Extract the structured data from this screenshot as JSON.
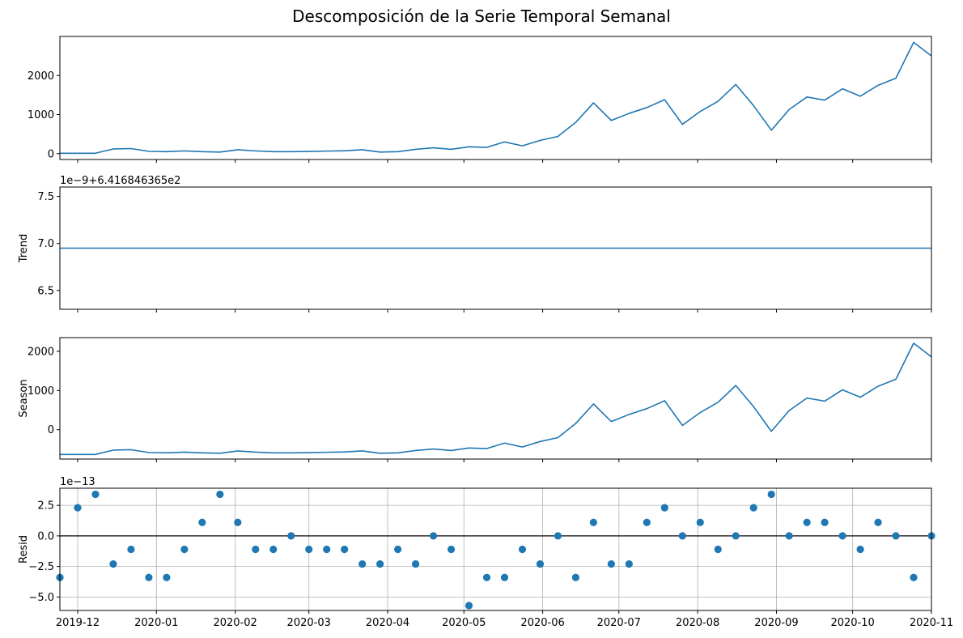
{
  "title": "Descomposición de la Serie Temporal Semanal",
  "colors": {
    "line": "#1f77b4",
    "marker": "#1f77b4",
    "axis": "#000000",
    "grid": "#b0b0b0"
  },
  "chart_data": [
    {
      "type": "line",
      "panel": "observed",
      "ylabel": "",
      "offset_text": "",
      "ylim": [
        -150,
        3000
      ],
      "yticks": [
        0,
        1000,
        2000
      ],
      "ytick_labels": [
        "0",
        "1000",
        "2000"
      ],
      "grid": false,
      "x": [
        "2019-11-24",
        "2019-12-01",
        "2019-12-08",
        "2019-12-15",
        "2019-12-22",
        "2019-12-29",
        "2020-01-05",
        "2020-01-12",
        "2020-01-19",
        "2020-01-26",
        "2020-02-02",
        "2020-02-09",
        "2020-02-16",
        "2020-02-23",
        "2020-03-01",
        "2020-03-08",
        "2020-03-15",
        "2020-03-22",
        "2020-03-29",
        "2020-04-05",
        "2020-04-12",
        "2020-04-19",
        "2020-04-26",
        "2020-05-03",
        "2020-05-10",
        "2020-05-17",
        "2020-05-24",
        "2020-05-31",
        "2020-06-07",
        "2020-06-14",
        "2020-06-21",
        "2020-06-28",
        "2020-07-05",
        "2020-07-12",
        "2020-07-19",
        "2020-07-26",
        "2020-08-02",
        "2020-08-09",
        "2020-08-16",
        "2020-08-23",
        "2020-08-30",
        "2020-09-06",
        "2020-09-13",
        "2020-09-20",
        "2020-09-27",
        "2020-10-04",
        "2020-10-11",
        "2020-10-18",
        "2020-10-25",
        "2020-11-01"
      ],
      "values": [
        10,
        10,
        10,
        120,
        130,
        60,
        50,
        70,
        50,
        40,
        100,
        70,
        50,
        50,
        55,
        65,
        75,
        100,
        40,
        50,
        110,
        150,
        110,
        175,
        160,
        300,
        200,
        340,
        440,
        800,
        1300,
        850,
        1030,
        1180,
        1380,
        750,
        1080,
        1340,
        1770,
        1230,
        600,
        1130,
        1450,
        1370,
        1660,
        1470,
        1750,
        1930,
        2850,
        2500
      ]
    },
    {
      "type": "line",
      "panel": "trend",
      "ylabel": "Trend",
      "offset_text": "1e−9+6.416846365e2",
      "ylim": [
        6.3,
        7.6
      ],
      "yticks": [
        6.5,
        7.0,
        7.5
      ],
      "ytick_labels": [
        "6.5",
        "7.0",
        "7.5"
      ],
      "grid": false,
      "values_note": "",
      "values": [
        6.95,
        6.95,
        6.95,
        6.95,
        6.95,
        6.95,
        6.95,
        6.95,
        6.95,
        6.95,
        6.95,
        6.95,
        6.95,
        6.95,
        6.95,
        6.95,
        6.95,
        6.95,
        6.95,
        6.95,
        6.95,
        6.95,
        6.95,
        6.95,
        6.95,
        6.95,
        6.95,
        6.95,
        6.95,
        6.95,
        6.95,
        6.95,
        6.95,
        6.95,
        6.95,
        6.95,
        6.95,
        6.95,
        6.95,
        6.95,
        6.95,
        6.95,
        6.95,
        6.95,
        6.95,
        6.95,
        6.95,
        6.95,
        6.95,
        6.95
      ]
    },
    {
      "type": "line",
      "panel": "season",
      "ylabel": "Season",
      "offset_text": "",
      "ylim": [
        -750,
        2350
      ],
      "yticks": [
        0,
        1000,
        2000
      ],
      "ytick_labels": [
        "0",
        "1000",
        "2000"
      ],
      "grid": false,
      "values": [
        -632,
        -632,
        -632,
        -522,
        -512,
        -582,
        -592,
        -572,
        -592,
        -602,
        -542,
        -572,
        -592,
        -592,
        -587,
        -577,
        -567,
        -542,
        -602,
        -592,
        -532,
        -492,
        -532,
        -467,
        -482,
        -342,
        -442,
        -302,
        -202,
        158,
        658,
        208,
        388,
        538,
        738,
        108,
        438,
        698,
        1128,
        588,
        -42,
        488,
        808,
        728,
        1018,
        828,
        1108,
        1288,
        2208,
        1858
      ]
    },
    {
      "type": "scatter",
      "panel": "resid",
      "ylabel": "Resid",
      "offset_text": "1e−13",
      "ylim": [
        -6.1,
        3.9
      ],
      "yticks": [
        -5.0,
        -2.5,
        0.0,
        2.5
      ],
      "ytick_labels": [
        "−5.0",
        "−2.5",
        "0.0",
        "2.5"
      ],
      "grid": true,
      "values": [
        -3.4,
        2.3,
        3.4,
        -2.3,
        -1.1,
        -3.4,
        -3.4,
        -1.1,
        1.1,
        3.4,
        1.1,
        -1.1,
        -1.1,
        0,
        -1.1,
        -1.1,
        -1.1,
        -2.3,
        -2.3,
        -1.1,
        -2.3,
        0,
        -1.1,
        -5.7,
        -3.4,
        -3.4,
        -1.1,
        -2.3,
        0,
        -3.4,
        1.1,
        -2.3,
        -2.3,
        1.1,
        2.3,
        0,
        1.1,
        -1.1,
        0,
        2.3,
        3.4,
        0,
        1.1,
        1.1,
        0,
        -1.1,
        1.1,
        0,
        -3.4,
        0
      ]
    }
  ],
  "x_axis": {
    "start": "2019-11-24",
    "end": "2020-11-01",
    "ticks": [
      "2019-12-01",
      "2020-01-01",
      "2020-02-01",
      "2020-03-01",
      "2020-04-01",
      "2020-05-01",
      "2020-06-01",
      "2020-07-01",
      "2020-08-01",
      "2020-09-01",
      "2020-10-01",
      "2020-11-01"
    ],
    "tick_labels": [
      "2019-12",
      "2020-01",
      "2020-02",
      "2020-03",
      "2020-04",
      "2020-05",
      "2020-06",
      "2020-07",
      "2020-08",
      "2020-09",
      "2020-10",
      "2020-11"
    ]
  }
}
